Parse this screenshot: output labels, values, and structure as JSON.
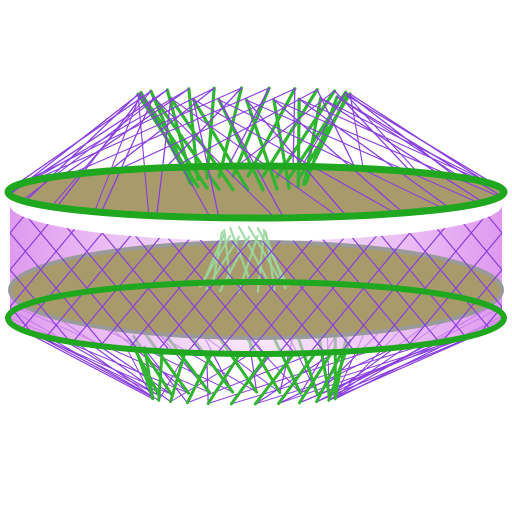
{
  "scene": {
    "subject": "tensegrity-ring-structure",
    "background_color": "#ffffff",
    "colors": {
      "ring_green": "#1fa81f",
      "strut_green": "#2fb52f",
      "cable_purple": "#8a3ee0",
      "deck_tan": "#a89a6a",
      "deck_rim_grey": "#9a9a9a",
      "membrane_pink": "#e6a3f0",
      "inner_strut_light": "#9ad8a0"
    },
    "counts": {
      "top_struts": 24,
      "bottom_struts": 24,
      "inner_struts": 14,
      "net_lines": 16
    }
  }
}
